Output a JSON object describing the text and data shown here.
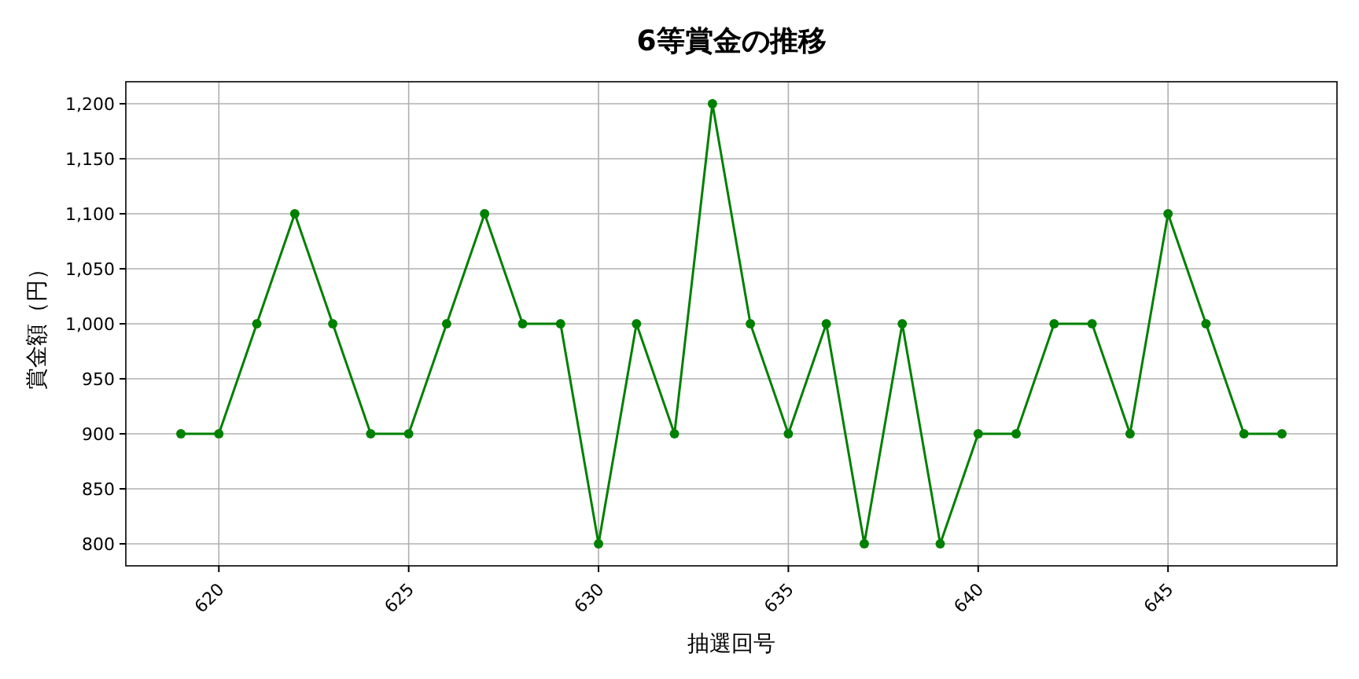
{
  "chart_data": {
    "type": "line",
    "title": "6等賞金の推移",
    "xlabel": "抽選回号",
    "ylabel": "賞金額（円）",
    "x": [
      619,
      620,
      621,
      622,
      623,
      624,
      625,
      626,
      627,
      628,
      629,
      630,
      631,
      632,
      633,
      634,
      635,
      636,
      637,
      638,
      639,
      640,
      641,
      642,
      643,
      644,
      645,
      646,
      647,
      648
    ],
    "series": [
      {
        "color": "#008000",
        "values": [
          900,
          900,
          1000,
          1100,
          1000,
          900,
          900,
          1000,
          1100,
          1000,
          1000,
          800,
          1000,
          900,
          1200,
          1000,
          900,
          1000,
          800,
          1000,
          800,
          900,
          900,
          1000,
          1000,
          900,
          1100,
          1000,
          900,
          900
        ]
      }
    ],
    "xlim": [
      617.55,
      649.45
    ],
    "xticks": [
      620,
      625,
      630,
      635,
      640,
      645
    ],
    "ylim": [
      780,
      1220
    ],
    "yticks": [
      {
        "value": 800,
        "label": "800"
      },
      {
        "value": 850,
        "label": "850"
      },
      {
        "value": 900,
        "label": "900"
      },
      {
        "value": 950,
        "label": "950"
      },
      {
        "value": 1000,
        "label": "1,000"
      },
      {
        "value": 1050,
        "label": "1,050"
      },
      {
        "value": 1100,
        "label": "1,100"
      },
      {
        "value": 1150,
        "label": "1,150"
      },
      {
        "value": 1200,
        "label": "1,200"
      }
    ],
    "grid": true,
    "marker": "circle",
    "line_style": "solid"
  }
}
